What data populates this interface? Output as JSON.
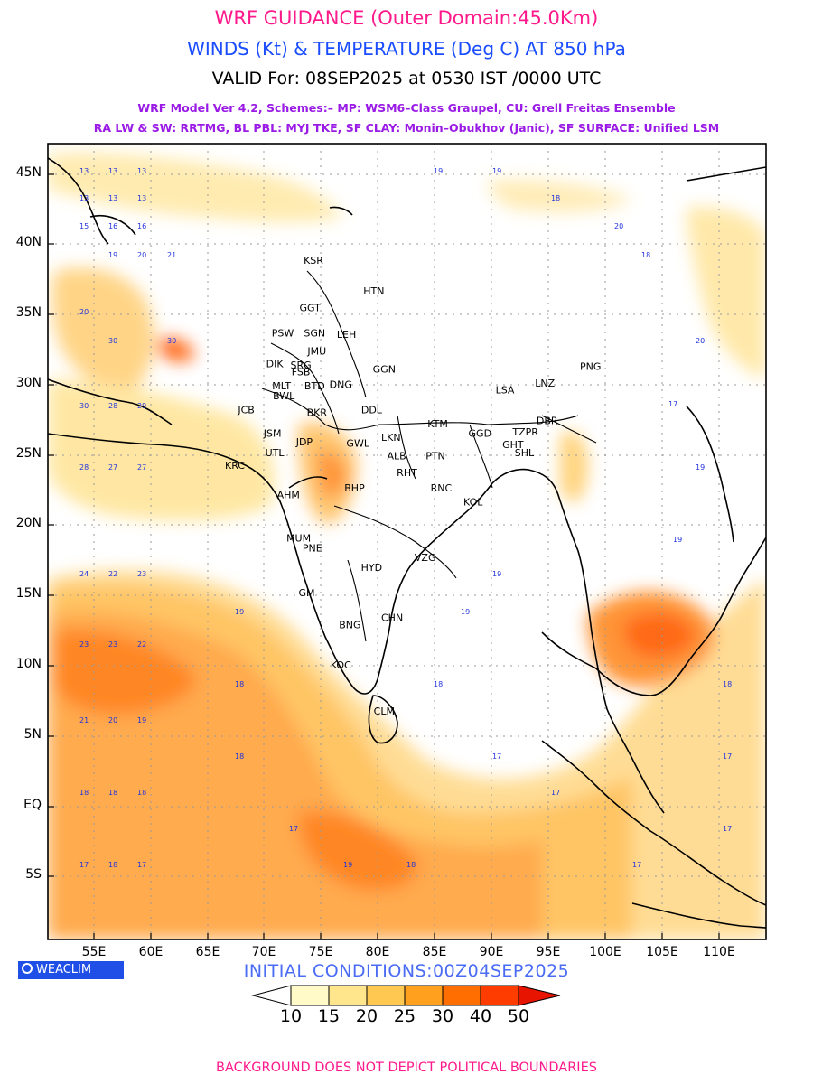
{
  "header": {
    "title": "WRF GUIDANCE (Outer Domain:45.0Km)",
    "subtitle": "WINDS (Kt) & TEMPERATURE (Deg C) AT 850 hPa",
    "valid": "VALID For: 08SEP2025 at 0530 IST /0000 UTC",
    "model_line1": "WRF Model Ver 4.2, Schemes:– MP: WSM6–Class Graupel, CU: Grell Freitas Ensemble",
    "model_line2": "RA LW & SW: RRTMG, BL PBL: MYJ TKE, SF CLAY: Monin–Obukhov (Janic), SF SURFACE: Unified LSM"
  },
  "map": {
    "lon_range": [
      51,
      114
    ],
    "lat_range": [
      -9.5,
      47.5
    ],
    "lat_ticks": [
      {
        "lat": 45,
        "label": "45N"
      },
      {
        "lat": 40,
        "label": "40N"
      },
      {
        "lat": 35,
        "label": "35N"
      },
      {
        "lat": 30,
        "label": "30N"
      },
      {
        "lat": 25,
        "label": "25N"
      },
      {
        "lat": 20,
        "label": "20N"
      },
      {
        "lat": 15,
        "label": "15N"
      },
      {
        "lat": 10,
        "label": "10N"
      },
      {
        "lat": 5,
        "label": "5N"
      },
      {
        "lat": 0,
        "label": "EQ"
      },
      {
        "lat": -5,
        "label": "5S"
      }
    ],
    "lon_ticks": [
      {
        "lon": 55,
        "label": "55E"
      },
      {
        "lon": 60,
        "label": "60E"
      },
      {
        "lon": 65,
        "label": "65E"
      },
      {
        "lon": 70,
        "label": "70E"
      },
      {
        "lon": 75,
        "label": "75E"
      },
      {
        "lon": 80,
        "label": "80E"
      },
      {
        "lon": 85,
        "label": "85E"
      },
      {
        "lon": 90,
        "label": "90E"
      },
      {
        "lon": 95,
        "label": "95E"
      },
      {
        "lon": 100,
        "label": "100E"
      },
      {
        "lon": 105,
        "label": "105E"
      },
      {
        "lon": 110,
        "label": "110E"
      }
    ],
    "stations": [
      {
        "name": "KSR",
        "lon": 74.3,
        "lat": 38.9
      },
      {
        "name": "HTN",
        "lon": 79.6,
        "lat": 36.7
      },
      {
        "name": "GGT",
        "lon": 74.0,
        "lat": 35.5
      },
      {
        "name": "PSW",
        "lon": 71.6,
        "lat": 33.7
      },
      {
        "name": "SGN",
        "lon": 74.4,
        "lat": 33.7
      },
      {
        "name": "LEH",
        "lon": 77.2,
        "lat": 33.6
      },
      {
        "name": "JMU",
        "lon": 74.6,
        "lat": 32.4
      },
      {
        "name": "DIK",
        "lon": 70.9,
        "lat": 31.5
      },
      {
        "name": "SRG",
        "lon": 73.2,
        "lat": 31.4
      },
      {
        "name": "GGN",
        "lon": 80.5,
        "lat": 31.1
      },
      {
        "name": "FSB",
        "lon": 73.2,
        "lat": 30.9
      },
      {
        "name": "MLT",
        "lon": 71.5,
        "lat": 29.9
      },
      {
        "name": "BTD",
        "lon": 74.4,
        "lat": 29.9
      },
      {
        "name": "DNG",
        "lon": 76.7,
        "lat": 30.0
      },
      {
        "name": "BWL",
        "lon": 71.7,
        "lat": 29.2
      },
      {
        "name": "LSA",
        "lon": 91.1,
        "lat": 29.6
      },
      {
        "name": "LNZ",
        "lon": 94.6,
        "lat": 30.1
      },
      {
        "name": "PNG",
        "lon": 98.6,
        "lat": 31.3
      },
      {
        "name": "JCB",
        "lon": 68.4,
        "lat": 28.2
      },
      {
        "name": "BKR",
        "lon": 74.6,
        "lat": 28.0
      },
      {
        "name": "DDL",
        "lon": 79.4,
        "lat": 28.2
      },
      {
        "name": "KTM",
        "lon": 85.2,
        "lat": 27.2
      },
      {
        "name": "GGD",
        "lon": 88.9,
        "lat": 26.5
      },
      {
        "name": "TZPR",
        "lon": 92.9,
        "lat": 26.6
      },
      {
        "name": "DBR",
        "lon": 94.8,
        "lat": 27.4
      },
      {
        "name": "JSM",
        "lon": 70.7,
        "lat": 26.5
      },
      {
        "name": "LKN",
        "lon": 81.1,
        "lat": 26.2
      },
      {
        "name": "JDP",
        "lon": 73.5,
        "lat": 25.9
      },
      {
        "name": "GWL",
        "lon": 78.2,
        "lat": 25.8
      },
      {
        "name": "GHT",
        "lon": 91.8,
        "lat": 25.7
      },
      {
        "name": "UTL",
        "lon": 70.9,
        "lat": 25.1
      },
      {
        "name": "ALB",
        "lon": 81.6,
        "lat": 24.9
      },
      {
        "name": "PTN",
        "lon": 85.0,
        "lat": 24.9
      },
      {
        "name": "SHL",
        "lon": 92.8,
        "lat": 25.1
      },
      {
        "name": "KRC",
        "lon": 67.4,
        "lat": 24.2
      },
      {
        "name": "RHT",
        "lon": 82.5,
        "lat": 23.7
      },
      {
        "name": "RNC",
        "lon": 85.5,
        "lat": 22.6
      },
      {
        "name": "AHM",
        "lon": 72.1,
        "lat": 22.1
      },
      {
        "name": "BHP",
        "lon": 77.9,
        "lat": 22.6
      },
      {
        "name": "KOL",
        "lon": 88.3,
        "lat": 21.6
      },
      {
        "name": "MUM",
        "lon": 73.0,
        "lat": 19.0
      },
      {
        "name": "PNE",
        "lon": 74.2,
        "lat": 18.3
      },
      {
        "name": "HYD",
        "lon": 79.4,
        "lat": 16.9
      },
      {
        "name": "VZG",
        "lon": 84.1,
        "lat": 17.6
      },
      {
        "name": "GM",
        "lon": 73.7,
        "lat": 15.1
      },
      {
        "name": "CHN",
        "lon": 81.2,
        "lat": 13.3
      },
      {
        "name": "BNG",
        "lon": 77.5,
        "lat": 12.8
      },
      {
        "name": "KOC",
        "lon": 76.7,
        "lat": 9.9
      },
      {
        "name": "CLM",
        "lon": 80.5,
        "lat": 6.6
      }
    ]
  },
  "branding": {
    "logo_text": "WEACLIM"
  },
  "initial_conditions": "INITIAL CONDITIONS:00Z04SEP2025",
  "colorbar": {
    "labels": [
      "10",
      "15",
      "20",
      "25",
      "30",
      "40",
      "50"
    ],
    "colors": [
      "#ffffff",
      "#fffac8",
      "#ffe68c",
      "#ffc850",
      "#ffa01e",
      "#ff6e00",
      "#ff3c00",
      "#e61400"
    ]
  },
  "footer": "BACKGROUND DOES NOT DEPICT POLITICAL BOUNDARIES"
}
